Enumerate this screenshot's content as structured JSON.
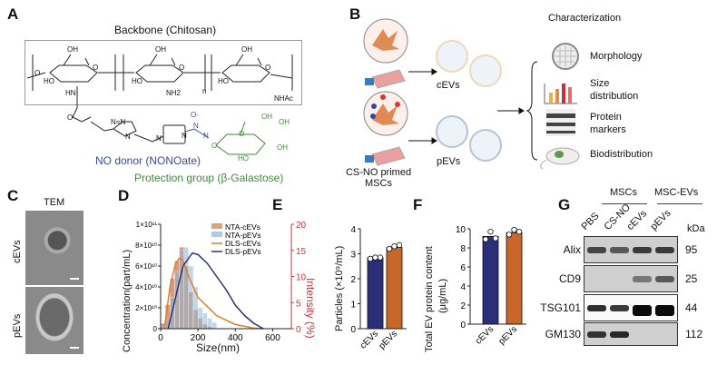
{
  "panels": {
    "A": "A",
    "B": "B",
    "C": "C",
    "D": "D",
    "E": "E",
    "F": "F",
    "G": "G"
  },
  "panel_a": {
    "title": "Backbone (Chitosan)",
    "no_donor": "NO donor (NONOate)",
    "protection": "Protection group (β-Galastose)",
    "chem_labels": [
      "OH",
      "OH",
      "OH",
      "O",
      "O",
      "O",
      "HO",
      "HO",
      "HO",
      "HN",
      "NH2",
      "n",
      "NHAc",
      "O",
      "N=N",
      "N",
      "N",
      "N",
      "O-",
      "N",
      "N",
      "O",
      "OH",
      "OH",
      "OH",
      "HO",
      "O",
      "O"
    ],
    "colors": {
      "no_donor": "#3a4a9a",
      "protection": "#3f8a3a"
    }
  },
  "panel_b": {
    "cevs": "cEVs",
    "pevs": "pEVs",
    "primed": "CS-NO primed",
    "mscs": "MSCs",
    "characterization": "Characterization",
    "items": [
      "Morphology",
      "Size distribution",
      "Protein markers",
      "Biodistribution"
    ]
  },
  "panel_c": {
    "title": "TEM",
    "rows": [
      "cEVs",
      "pEVs"
    ]
  },
  "chart_data": [
    {
      "type": "bar+line",
      "panel": "D",
      "xlabel": "Size(nm)",
      "ylabel": "Concentration(part/mL)",
      "y2label": "Intensity (%)",
      "xlim": [
        0,
        700
      ],
      "xticks": [
        "0",
        "200",
        "400",
        "600"
      ],
      "ylim": [
        0,
        100000000000.0
      ],
      "yticks": [
        "0",
        "2×10¹⁰",
        "4×10¹⁰",
        "6×10¹⁰",
        "8×10¹⁰",
        "1×10¹¹"
      ],
      "y2lim": [
        0,
        20
      ],
      "y2ticks": [
        "0",
        "5",
        "10",
        "15",
        "20"
      ],
      "legend_position": "top-right",
      "series": [
        {
          "name": "NTA-cEVs",
          "kind": "hist",
          "bin_width": 25,
          "color": "#c97a4a",
          "x": [
            12.5,
            37.5,
            62.5,
            87.5,
            112.5,
            137.5,
            162.5,
            187.5,
            212.5,
            237.5,
            262.5
          ],
          "values": [
            5000000000.0,
            23000000000.0,
            48000000000.0,
            65000000000.0,
            78000000000.0,
            60000000000.0,
            35000000000.0,
            18000000000.0,
            10000000000.0,
            4000000000.0,
            2000000000.0
          ]
        },
        {
          "name": "NTA-pEVs",
          "kind": "hist",
          "bin_width": 25,
          "color": "#8fb6d6",
          "x": [
            12.5,
            37.5,
            62.5,
            87.5,
            112.5,
            137.5,
            162.5,
            187.5,
            212.5,
            237.5,
            262.5,
            287.5
          ],
          "values": [
            2000000000.0,
            10000000000.0,
            30000000000.0,
            55000000000.0,
            75000000000.0,
            78000000000.0,
            60000000000.0,
            40000000000.0,
            20000000000.0,
            15000000000.0,
            10000000000.0,
            6000000000.0
          ]
        },
        {
          "name": "DLS-cEVs",
          "kind": "line",
          "axis": "y2",
          "color": "#e07b2a",
          "x": [
            20,
            50,
            80,
            100,
            120,
            150,
            200,
            300,
            400,
            500,
            550
          ],
          "values": [
            0,
            8,
            12.5,
            13.5,
            13,
            10,
            6,
            2.5,
            0.8,
            0.1,
            0
          ]
        },
        {
          "name": "DLS-pEVs",
          "kind": "line",
          "axis": "y2",
          "color": "#2b2f7a",
          "x": [
            40,
            80,
            120,
            170,
            200,
            250,
            300,
            350,
            400,
            450,
            500,
            550
          ],
          "values": [
            0,
            6,
            12,
            14.5,
            14.2,
            12.5,
            10,
            7.5,
            4.5,
            2.5,
            1,
            0
          ]
        }
      ]
    },
    {
      "type": "bar",
      "panel": "E",
      "categories": [
        "cEVs",
        "pEVs"
      ],
      "values": [
        2.85,
        3.25
      ],
      "points": [
        [
          2.8,
          2.85,
          2.85
        ],
        [
          3.2,
          3.3,
          3.35
        ]
      ],
      "ylabel": "Particles (×10⁹/mL)",
      "ylim": [
        0,
        4
      ],
      "yticks": [
        "0",
        "1",
        "2",
        "3",
        "4"
      ],
      "colors": [
        "#2b2f7a",
        "#c8672a"
      ]
    },
    {
      "type": "bar",
      "panel": "F",
      "categories": [
        "cEVs",
        "pEVs"
      ],
      "values": [
        9.2,
        9.6
      ],
      "points": [
        [
          8.9,
          9.7,
          9.0
        ],
        [
          9.4,
          9.9,
          9.7
        ]
      ],
      "ylabel": "Total EV protein content",
      "ylabel2": "(μg/mL)",
      "ylim": [
        0,
        10
      ],
      "yticks": [
        "0",
        "2",
        "4",
        "6",
        "8",
        "10"
      ],
      "colors": [
        "#2b2f7a",
        "#c8672a"
      ]
    }
  ],
  "panel_g": {
    "groups": [
      "MSCs",
      "MSC-EVs"
    ],
    "lanes": [
      "PBS",
      "CS-NO",
      "cEVs",
      "pEVs"
    ],
    "kda_label": "kDa",
    "rows": [
      {
        "name": "Alix",
        "kda": "95"
      },
      {
        "name": "CD9",
        "kda": "25"
      },
      {
        "name": "TSG101",
        "kda": "44"
      },
      {
        "name": "GM130",
        "kda": "112"
      }
    ]
  }
}
